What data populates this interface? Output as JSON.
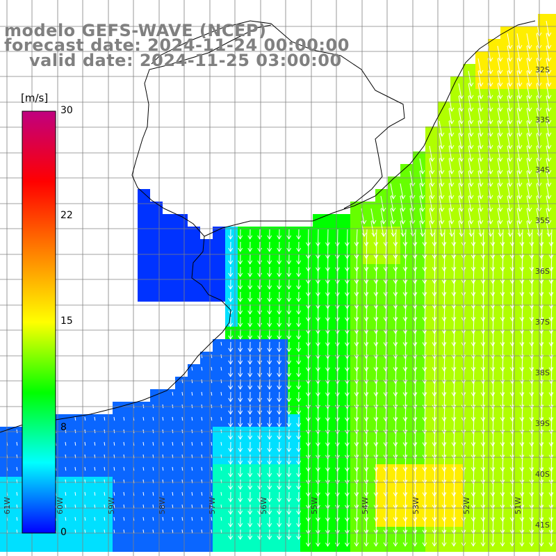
{
  "titles": {
    "model": "modelo GEFS-WAVE (NCEP)",
    "forecast": "forecast date: 2024-11-24 00:00:00",
    "valid": "valid date: 2024-11-25 03:00:00"
  },
  "colorbar": {
    "units": "[m/s]",
    "ticks": [
      "30",
      "22",
      "15",
      "8",
      "0"
    ],
    "min": 0,
    "max": 30,
    "colors": [
      "#0000ff",
      "#00ffff",
      "#00ff00",
      "#ffff00",
      "#ff8000",
      "#ff0000",
      "#c00080"
    ]
  },
  "map": {
    "lat_labels": [
      "32S",
      "33S",
      "34S",
      "35S",
      "36S",
      "37S",
      "38S",
      "39S",
      "40S",
      "41S"
    ],
    "lon_labels": [
      "61W",
      "60W",
      "59W",
      "58W",
      "57W",
      "56W",
      "55W",
      "54W",
      "53W",
      "52W",
      "51W"
    ],
    "ocean_palette": {
      "deep_blue": "#0033ff",
      "blue": "#0a66ff",
      "cyan": "#00e0ff",
      "aqua": "#00ffc0",
      "green": "#00ff00",
      "lime": "#66ff00",
      "yellow_green": "#b0ff00",
      "yellow": "#ffee00"
    },
    "land_color": "#ffffff",
    "arrow_color": "#ffffff",
    "grid_color": "#808080"
  }
}
